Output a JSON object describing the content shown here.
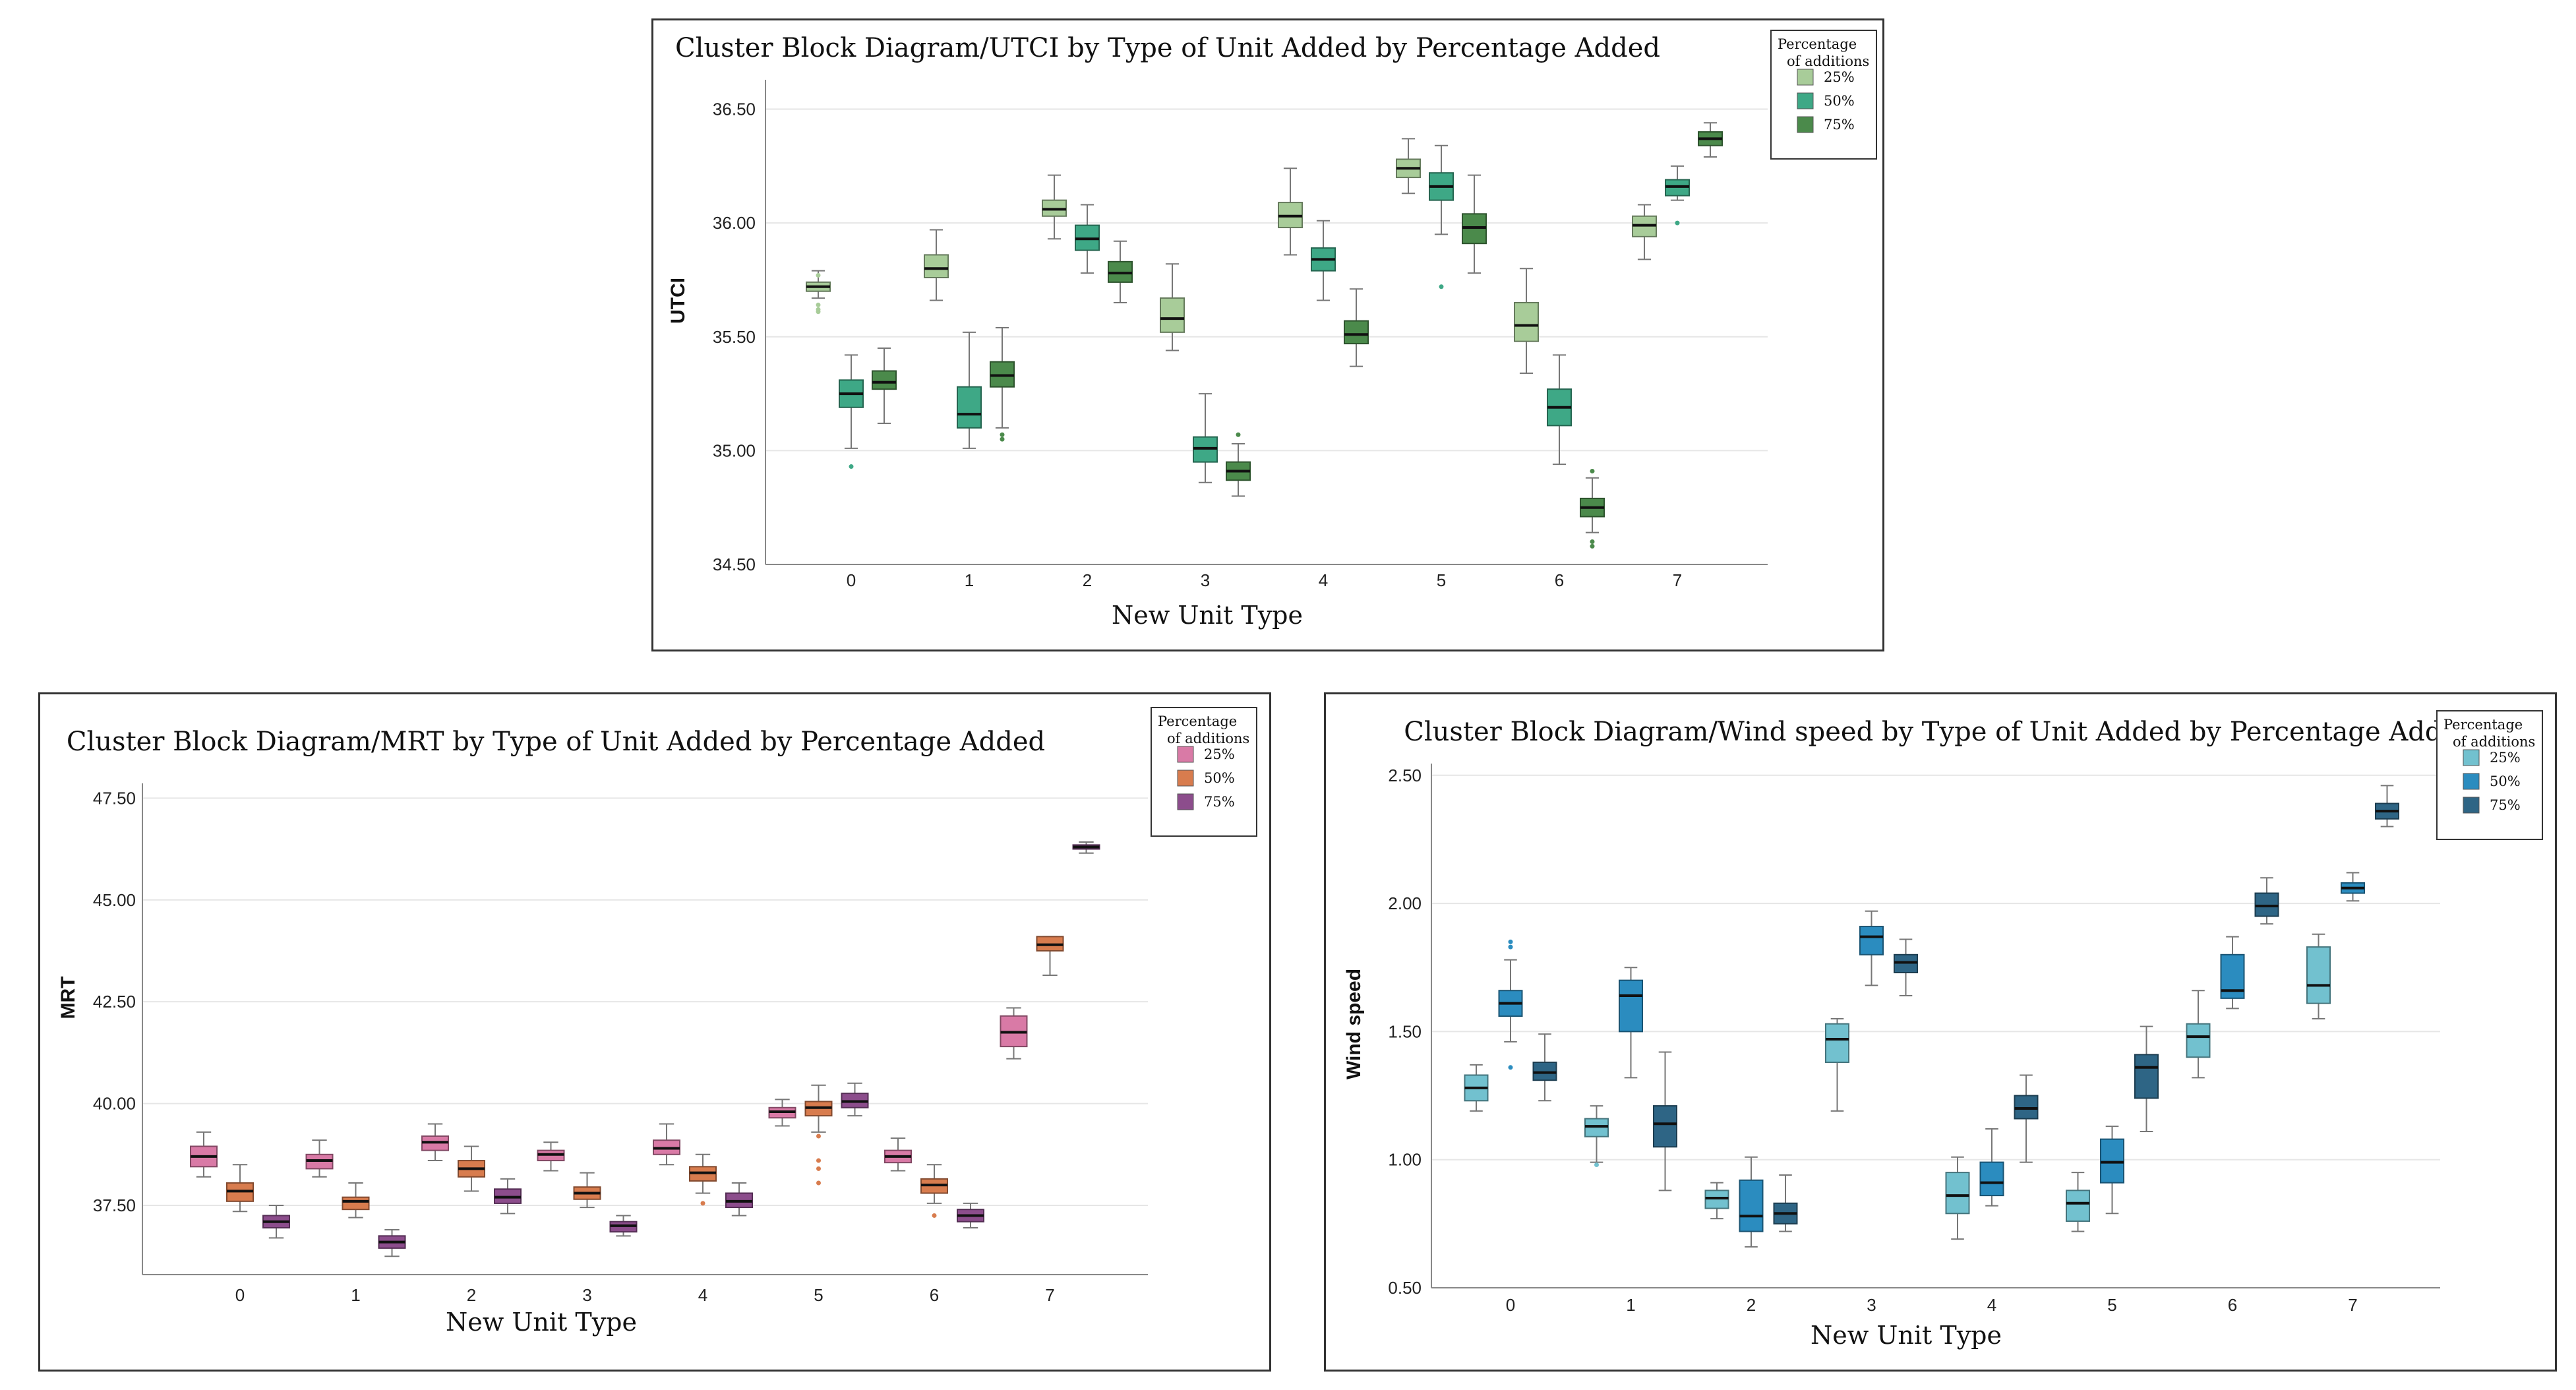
{
  "chart_data": [
    {
      "id": "utci",
      "type": "boxplot",
      "title": "Cluster Block Diagram/UTCI by Type of Unit Added by Percentage Added",
      "xlabel": "New Unit Type",
      "ylabel": "UTCI",
      "categories": [
        "0",
        "1",
        "2",
        "3",
        "4",
        "5",
        "6",
        "7"
      ],
      "ylim": [
        34.5,
        36.6
      ],
      "yticks": [
        34.5,
        35.0,
        35.5,
        36.0,
        36.5
      ],
      "ytick_labels": [
        "34.50",
        "35.00",
        "35.50",
        "36.00",
        "36.50"
      ],
      "legend": {
        "title": [
          "Percentage",
          "of additions"
        ],
        "position": "top-right"
      },
      "series": [
        {
          "name": "25%",
          "color": "#a8cc99",
          "boxes": [
            {
              "min": 35.67,
              "q1": 35.7,
              "median": 35.72,
              "q3": 35.74,
              "max": 35.79,
              "outliers": [
                35.64,
                35.62,
                35.61,
                35.77
              ]
            },
            {
              "min": 35.66,
              "q1": 35.76,
              "median": 35.8,
              "q3": 35.86,
              "max": 35.97,
              "outliers": []
            },
            {
              "min": 35.93,
              "q1": 36.03,
              "median": 36.06,
              "q3": 36.1,
              "max": 36.21,
              "outliers": []
            },
            {
              "min": 35.44,
              "q1": 35.52,
              "median": 35.58,
              "q3": 35.67,
              "max": 35.82,
              "outliers": []
            },
            {
              "min": 35.86,
              "q1": 35.98,
              "median": 36.03,
              "q3": 36.09,
              "max": 36.24,
              "outliers": []
            },
            {
              "min": 36.13,
              "q1": 36.2,
              "median": 36.24,
              "q3": 36.28,
              "max": 36.37,
              "outliers": []
            },
            {
              "min": 35.34,
              "q1": 35.48,
              "median": 35.55,
              "q3": 35.65,
              "max": 35.8,
              "outliers": []
            },
            {
              "min": 35.84,
              "q1": 35.94,
              "median": 35.99,
              "q3": 36.03,
              "max": 36.08,
              "outliers": []
            }
          ]
        },
        {
          "name": "50%",
          "color": "#3ea886",
          "boxes": [
            {
              "min": 35.01,
              "q1": 35.19,
              "median": 35.25,
              "q3": 35.31,
              "max": 35.42,
              "outliers": [
                34.93
              ]
            },
            {
              "min": 35.01,
              "q1": 35.1,
              "median": 35.16,
              "q3": 35.28,
              "max": 35.52,
              "outliers": []
            },
            {
              "min": 35.78,
              "q1": 35.88,
              "median": 35.93,
              "q3": 35.99,
              "max": 36.08,
              "outliers": []
            },
            {
              "min": 34.86,
              "q1": 34.95,
              "median": 35.01,
              "q3": 35.06,
              "max": 35.25,
              "outliers": []
            },
            {
              "min": 35.66,
              "q1": 35.79,
              "median": 35.84,
              "q3": 35.89,
              "max": 36.01,
              "outliers": []
            },
            {
              "min": 35.95,
              "q1": 36.1,
              "median": 36.16,
              "q3": 36.22,
              "max": 36.34,
              "outliers": [
                35.72
              ]
            },
            {
              "min": 34.94,
              "q1": 35.11,
              "median": 35.19,
              "q3": 35.27,
              "max": 35.42,
              "outliers": []
            },
            {
              "min": 36.1,
              "q1": 36.12,
              "median": 36.16,
              "q3": 36.19,
              "max": 36.25,
              "outliers": [
                36.0
              ]
            }
          ]
        },
        {
          "name": "75%",
          "color": "#4b8a4b",
          "boxes": [
            {
              "min": 35.12,
              "q1": 35.27,
              "median": 35.3,
              "q3": 35.35,
              "max": 35.45,
              "outliers": []
            },
            {
              "min": 35.1,
              "q1": 35.28,
              "median": 35.33,
              "q3": 35.39,
              "max": 35.54,
              "outliers": [
                35.07,
                35.05
              ]
            },
            {
              "min": 35.65,
              "q1": 35.74,
              "median": 35.78,
              "q3": 35.83,
              "max": 35.92,
              "outliers": []
            },
            {
              "min": 34.8,
              "q1": 34.87,
              "median": 34.91,
              "q3": 34.95,
              "max": 35.03,
              "outliers": [
                35.07
              ]
            },
            {
              "min": 35.37,
              "q1": 35.47,
              "median": 35.51,
              "q3": 35.57,
              "max": 35.71,
              "outliers": []
            },
            {
              "min": 35.78,
              "q1": 35.91,
              "median": 35.98,
              "q3": 36.04,
              "max": 36.21,
              "outliers": []
            },
            {
              "min": 34.64,
              "q1": 34.71,
              "median": 34.75,
              "q3": 34.79,
              "max": 34.88,
              "outliers": [
                34.6,
                34.58,
                34.91
              ]
            },
            {
              "min": 36.29,
              "q1": 36.34,
              "median": 36.37,
              "q3": 36.4,
              "max": 36.44,
              "outliers": []
            }
          ]
        }
      ]
    },
    {
      "id": "mrt",
      "type": "boxplot",
      "title": "Cluster Block Diagram/MRT by Type of Unit Added by Percentage Added",
      "xlabel": "New Unit Type",
      "ylabel": "MRT",
      "categories": [
        "0",
        "1",
        "2",
        "3",
        "4",
        "5",
        "6",
        "7"
      ],
      "ylim": [
        35.8,
        47.7
      ],
      "yticks": [
        37.5,
        40.0,
        42.5,
        45.0,
        47.5
      ],
      "ytick_labels": [
        "37.50",
        "40.00",
        "42.50",
        "45.00",
        "47.50"
      ],
      "legend": {
        "title": [
          "Percentage",
          "of additions"
        ],
        "position": "top-right"
      },
      "series": [
        {
          "name": "25%",
          "color": "#d97aa6",
          "boxes": [
            {
              "min": 38.2,
              "q1": 38.45,
              "median": 38.7,
              "q3": 38.95,
              "max": 39.3,
              "outliers": []
            },
            {
              "min": 38.2,
              "q1": 38.4,
              "median": 38.6,
              "q3": 38.75,
              "max": 39.1,
              "outliers": []
            },
            {
              "min": 38.6,
              "q1": 38.85,
              "median": 39.05,
              "q3": 39.2,
              "max": 39.5,
              "outliers": []
            },
            {
              "min": 38.35,
              "q1": 38.6,
              "median": 38.75,
              "q3": 38.85,
              "max": 39.05,
              "outliers": []
            },
            {
              "min": 38.5,
              "q1": 38.75,
              "median": 38.9,
              "q3": 39.1,
              "max": 39.5,
              "outliers": []
            },
            {
              "min": 39.45,
              "q1": 39.65,
              "median": 39.8,
              "q3": 39.9,
              "max": 40.1,
              "outliers": []
            },
            {
              "min": 38.35,
              "q1": 38.55,
              "median": 38.7,
              "q3": 38.85,
              "max": 39.15,
              "outliers": []
            },
            {
              "min": 41.1,
              "q1": 41.4,
              "median": 41.75,
              "q3": 42.15,
              "max": 42.35,
              "outliers": []
            }
          ]
        },
        {
          "name": "50%",
          "color": "#d87c4e",
          "boxes": [
            {
              "min": 37.35,
              "q1": 37.6,
              "median": 37.85,
              "q3": 38.05,
              "max": 38.5,
              "outliers": []
            },
            {
              "min": 37.2,
              "q1": 37.4,
              "median": 37.6,
              "q3": 37.7,
              "max": 38.05,
              "outliers": []
            },
            {
              "min": 37.85,
              "q1": 38.2,
              "median": 38.4,
              "q3": 38.6,
              "max": 38.95,
              "outliers": []
            },
            {
              "min": 37.45,
              "q1": 37.65,
              "median": 37.8,
              "q3": 37.95,
              "max": 38.3,
              "outliers": []
            },
            {
              "min": 37.8,
              "q1": 38.1,
              "median": 38.3,
              "q3": 38.45,
              "max": 38.75,
              "outliers": [
                37.55
              ]
            },
            {
              "min": 39.3,
              "q1": 39.7,
              "median": 39.9,
              "q3": 40.05,
              "max": 40.45,
              "outliers": [
                39.2,
                38.6,
                38.4,
                38.05
              ]
            },
            {
              "min": 37.55,
              "q1": 37.8,
              "median": 38.0,
              "q3": 38.15,
              "max": 38.5,
              "outliers": [
                37.25
              ]
            },
            {
              "min": 43.15,
              "q1": 43.75,
              "median": 43.9,
              "q3": 44.1,
              "max": 44.1,
              "outliers": []
            }
          ]
        },
        {
          "name": "75%",
          "color": "#8c4d8c",
          "boxes": [
            {
              "min": 36.7,
              "q1": 36.95,
              "median": 37.1,
              "q3": 37.25,
              "max": 37.5,
              "outliers": []
            },
            {
              "min": 36.25,
              "q1": 36.45,
              "median": 36.6,
              "q3": 36.75,
              "max": 36.9,
              "outliers": []
            },
            {
              "min": 37.3,
              "q1": 37.55,
              "median": 37.7,
              "q3": 37.9,
              "max": 38.15,
              "outliers": []
            },
            {
              "min": 36.75,
              "q1": 36.85,
              "median": 37.0,
              "q3": 37.1,
              "max": 37.25,
              "outliers": []
            },
            {
              "min": 37.25,
              "q1": 37.45,
              "median": 37.6,
              "q3": 37.8,
              "max": 38.05,
              "outliers": []
            },
            {
              "min": 39.7,
              "q1": 39.9,
              "median": 40.05,
              "q3": 40.25,
              "max": 40.5,
              "outliers": []
            },
            {
              "min": 36.95,
              "q1": 37.1,
              "median": 37.25,
              "q3": 37.4,
              "max": 37.55,
              "outliers": []
            },
            {
              "min": 46.15,
              "q1": 46.25,
              "median": 46.3,
              "q3": 46.35,
              "max": 46.42,
              "outliers": []
            }
          ]
        }
      ]
    },
    {
      "id": "wind",
      "type": "boxplot",
      "title": "Cluster Block Diagram/Wind speed by Type of Unit Added by Percentage Added",
      "xlabel": "New Unit Type",
      "ylabel": "Wind speed",
      "categories": [
        "0",
        "1",
        "2",
        "3",
        "4",
        "5",
        "6",
        "7"
      ],
      "ylim": [
        0.5,
        2.52
      ],
      "yticks": [
        0.5,
        1.0,
        1.5,
        2.0,
        2.5
      ],
      "ytick_labels": [
        "0.50",
        "1.00",
        "1.50",
        "2.00",
        "2.50"
      ],
      "legend": {
        "title": [
          "Percentage",
          "of additions"
        ],
        "position": "top-right"
      },
      "series": [
        {
          "name": "25%",
          "color": "#72c1cf",
          "boxes": [
            {
              "min": 1.19,
              "q1": 1.23,
              "median": 1.28,
              "q3": 1.33,
              "max": 1.37,
              "outliers": []
            },
            {
              "min": 0.99,
              "q1": 1.09,
              "median": 1.13,
              "q3": 1.16,
              "max": 1.21,
              "outliers": [
                0.98
              ]
            },
            {
              "min": 0.77,
              "q1": 0.81,
              "median": 0.85,
              "q3": 0.88,
              "max": 0.91,
              "outliers": []
            },
            {
              "min": 1.19,
              "q1": 1.38,
              "median": 1.47,
              "q3": 1.53,
              "max": 1.55,
              "outliers": []
            },
            {
              "min": 0.69,
              "q1": 0.79,
              "median": 0.86,
              "q3": 0.95,
              "max": 1.01,
              "outliers": []
            },
            {
              "min": 0.72,
              "q1": 0.76,
              "median": 0.83,
              "q3": 0.88,
              "max": 0.95,
              "outliers": []
            },
            {
              "min": 1.32,
              "q1": 1.4,
              "median": 1.48,
              "q3": 1.53,
              "max": 1.66,
              "outliers": []
            },
            {
              "min": 1.55,
              "q1": 1.61,
              "median": 1.68,
              "q3": 1.83,
              "max": 1.88,
              "outliers": []
            }
          ]
        },
        {
          "name": "50%",
          "color": "#2b8cbf",
          "boxes": [
            {
              "min": 1.46,
              "q1": 1.56,
              "median": 1.61,
              "q3": 1.66,
              "max": 1.78,
              "outliers": [
                1.36,
                1.85,
                1.83
              ]
            },
            {
              "min": 1.32,
              "q1": 1.5,
              "median": 1.64,
              "q3": 1.7,
              "max": 1.75,
              "outliers": []
            },
            {
              "min": 0.66,
              "q1": 0.72,
              "median": 0.78,
              "q3": 0.92,
              "max": 1.01,
              "outliers": []
            },
            {
              "min": 1.68,
              "q1": 1.8,
              "median": 1.87,
              "q3": 1.91,
              "max": 1.97,
              "outliers": []
            },
            {
              "min": 0.82,
              "q1": 0.86,
              "median": 0.91,
              "q3": 0.99,
              "max": 1.12,
              "outliers": []
            },
            {
              "min": 0.79,
              "q1": 0.91,
              "median": 0.99,
              "q3": 1.08,
              "max": 1.13,
              "outliers": []
            },
            {
              "min": 1.59,
              "q1": 1.63,
              "median": 1.66,
              "q3": 1.8,
              "max": 1.87,
              "outliers": []
            },
            {
              "min": 2.01,
              "q1": 2.04,
              "median": 2.06,
              "q3": 2.08,
              "max": 2.12,
              "outliers": []
            }
          ]
        },
        {
          "name": "75%",
          "color": "#2e6585",
          "boxes": [
            {
              "min": 1.23,
              "q1": 1.31,
              "median": 1.34,
              "q3": 1.38,
              "max": 1.49,
              "outliers": []
            },
            {
              "min": 0.88,
              "q1": 1.05,
              "median": 1.14,
              "q3": 1.21,
              "max": 1.42,
              "outliers": []
            },
            {
              "min": 0.72,
              "q1": 0.75,
              "median": 0.79,
              "q3": 0.83,
              "max": 0.94,
              "outliers": []
            },
            {
              "min": 1.64,
              "q1": 1.73,
              "median": 1.77,
              "q3": 1.8,
              "max": 1.86,
              "outliers": []
            },
            {
              "min": 0.99,
              "q1": 1.16,
              "median": 1.2,
              "q3": 1.25,
              "max": 1.33,
              "outliers": []
            },
            {
              "min": 1.11,
              "q1": 1.24,
              "median": 1.36,
              "q3": 1.41,
              "max": 1.52,
              "outliers": []
            },
            {
              "min": 1.92,
              "q1": 1.95,
              "median": 1.99,
              "q3": 2.04,
              "max": 2.1,
              "outliers": []
            },
            {
              "min": 2.3,
              "q1": 2.33,
              "median": 2.36,
              "q3": 2.39,
              "max": 2.46,
              "outliers": []
            }
          ]
        }
      ]
    }
  ]
}
